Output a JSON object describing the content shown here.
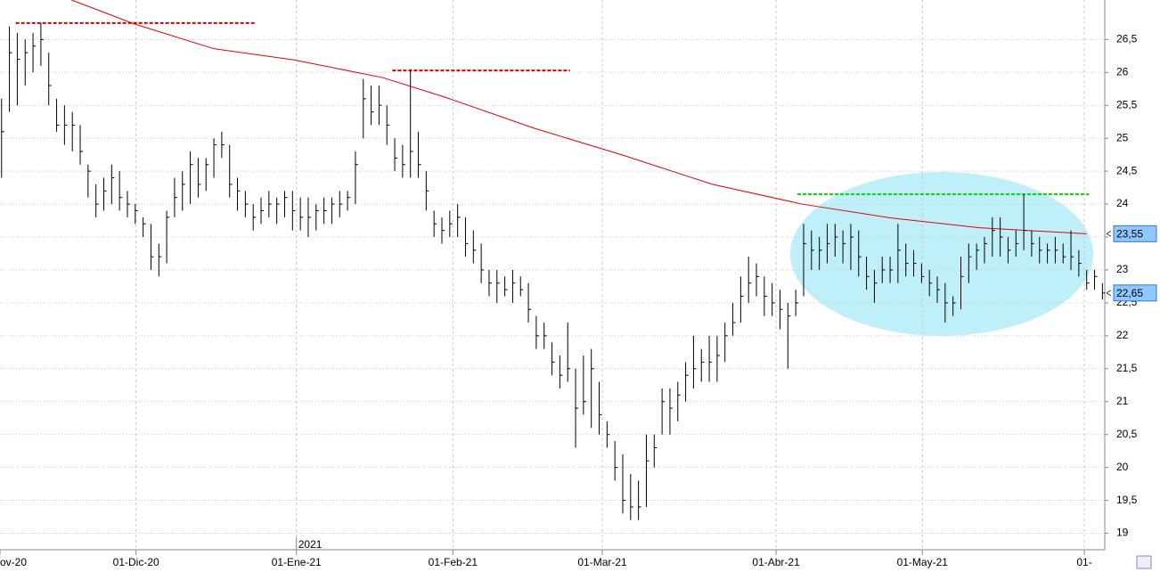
{
  "chart_data": {
    "type": "ohlc",
    "bar_color": "#000000",
    "x": [
      0,
      1,
      2,
      3,
      4,
      5,
      6,
      7,
      8,
      9,
      10,
      11,
      12,
      13,
      14,
      15,
      16,
      17,
      18,
      19,
      20,
      21,
      22,
      23,
      24,
      25,
      26,
      27,
      28,
      29,
      30,
      31,
      32,
      33,
      34,
      35,
      36,
      37,
      38,
      39,
      40,
      41,
      42,
      43,
      44,
      45,
      46,
      47,
      48,
      49,
      50,
      51,
      52,
      53,
      54,
      55,
      56,
      57,
      58,
      59,
      60,
      61,
      62,
      63,
      64,
      65,
      66,
      67,
      68,
      69,
      70,
      71,
      72,
      73,
      74,
      75,
      76,
      77,
      78,
      79,
      80,
      81,
      82,
      83,
      84,
      85,
      86,
      87,
      88,
      89,
      90,
      91,
      92,
      93,
      94,
      95,
      96,
      97,
      98,
      99,
      100,
      101,
      102,
      103,
      104,
      105,
      106,
      107,
      108,
      109,
      110,
      111,
      112,
      113,
      114,
      115,
      116,
      117,
      118,
      119,
      120,
      121,
      122,
      123,
      124,
      125,
      126,
      127,
      128,
      129,
      130,
      131,
      132,
      133,
      134,
      135,
      136,
      137,
      138,
      139,
      140
    ],
    "high": [
      25.6,
      26.7,
      26.6,
      26.5,
      26.6,
      26.75,
      26.3,
      25.6,
      25.5,
      25.4,
      25.2,
      24.6,
      24.3,
      24.4,
      24.6,
      24.5,
      24.2,
      24.0,
      23.8,
      23.7,
      23.4,
      23.9,
      24.4,
      24.5,
      24.8,
      24.7,
      24.7,
      25.0,
      25.1,
      24.9,
      24.4,
      24.2,
      24.0,
      24.1,
      24.2,
      24.1,
      24.2,
      24.2,
      24.1,
      24.1,
      24.0,
      24.1,
      24.1,
      24.2,
      24.2,
      24.8,
      25.9,
      25.8,
      25.8,
      25.5,
      25.0,
      24.9,
      26.05,
      25.1,
      24.5,
      23.9,
      23.8,
      23.9,
      24.0,
      23.8,
      23.6,
      23.4,
      23.0,
      23.0,
      22.9,
      23.0,
      22.9,
      22.8,
      22.3,
      22.2,
      21.9,
      21.7,
      22.2,
      21.5,
      21.7,
      21.8,
      21.3,
      20.7,
      20.4,
      20.2,
      19.9,
      19.8,
      20.5,
      20.5,
      21.2,
      21.2,
      21.3,
      21.6,
      22.0,
      21.8,
      22.0,
      22.0,
      22.2,
      22.5,
      22.9,
      23.2,
      23.1,
      22.9,
      22.8,
      22.7,
      22.5,
      22.7,
      23.7,
      23.6,
      23.5,
      23.7,
      23.7,
      23.6,
      23.7,
      23.6,
      23.2,
      23.0,
      23.2,
      23.2,
      23.7,
      23.4,
      23.3,
      23.1,
      23.0,
      22.9,
      22.8,
      22.6,
      23.2,
      23.4,
      23.4,
      23.5,
      23.8,
      23.8,
      23.5,
      23.6,
      24.15,
      23.6,
      23.5,
      23.4,
      23.5,
      23.4,
      23.6,
      23.3,
      23.0,
      23.0,
      22.8
    ],
    "low": [
      24.4,
      25.4,
      25.5,
      25.8,
      26.0,
      26.1,
      25.5,
      25.1,
      24.9,
      24.8,
      24.6,
      24.1,
      23.8,
      23.9,
      24.0,
      23.9,
      23.8,
      23.7,
      23.5,
      23.0,
      22.9,
      23.1,
      23.8,
      23.9,
      24.0,
      24.1,
      24.2,
      24.4,
      24.7,
      24.1,
      23.9,
      23.8,
      23.6,
      23.7,
      23.8,
      23.7,
      23.8,
      23.6,
      23.6,
      23.5,
      23.6,
      23.7,
      23.7,
      23.8,
      23.9,
      24.0,
      25.0,
      25.2,
      25.2,
      24.9,
      24.5,
      24.4,
      24.4,
      24.4,
      23.9,
      23.5,
      23.4,
      23.5,
      23.5,
      23.2,
      23.1,
      22.8,
      22.6,
      22.5,
      22.6,
      22.5,
      22.6,
      22.2,
      21.8,
      21.8,
      21.4,
      21.2,
      21.3,
      20.3,
      20.8,
      20.6,
      20.5,
      20.3,
      19.8,
      19.3,
      19.2,
      19.2,
      19.4,
      20.0,
      20.5,
      20.5,
      20.7,
      21.0,
      21.2,
      21.3,
      21.3,
      21.3,
      21.6,
      22.0,
      22.2,
      22.5,
      22.6,
      22.3,
      22.3,
      22.1,
      21.5,
      22.3,
      22.6,
      23.0,
      23.0,
      23.1,
      23.2,
      23.1,
      23.0,
      22.9,
      22.7,
      22.5,
      22.8,
      22.8,
      22.8,
      22.9,
      22.9,
      22.8,
      22.6,
      22.5,
      22.2,
      22.3,
      22.4,
      22.8,
      23.0,
      23.1,
      23.2,
      23.2,
      23.1,
      23.2,
      23.3,
      23.2,
      23.1,
      23.1,
      23.1,
      23.1,
      23.0,
      22.9,
      22.7,
      22.7,
      22.55
    ],
    "close": [
      25.1,
      26.3,
      26.2,
      26.3,
      26.4,
      26.5,
      25.8,
      25.2,
      25.2,
      25.2,
      24.8,
      24.5,
      24.0,
      24.2,
      24.4,
      24.1,
      24.0,
      23.9,
      23.7,
      23.2,
      23.2,
      23.8,
      24.1,
      24.3,
      24.6,
      24.3,
      24.6,
      24.9,
      24.9,
      24.3,
      24.2,
      24.0,
      23.8,
      23.9,
      24.0,
      24.0,
      24.1,
      23.9,
      23.8,
      23.8,
      23.9,
      23.9,
      24.0,
      24.0,
      24.1,
      24.6,
      25.6,
      25.4,
      25.5,
      25.2,
      24.7,
      24.6,
      24.8,
      24.6,
      24.2,
      23.7,
      23.6,
      23.7,
      23.8,
      23.4,
      23.3,
      23.0,
      22.8,
      22.8,
      22.7,
      22.8,
      22.7,
      22.4,
      22.0,
      22.0,
      21.6,
      21.4,
      21.5,
      20.9,
      21.0,
      21.5,
      20.8,
      20.5,
      20.0,
      19.5,
      19.4,
      19.4,
      20.1,
      20.3,
      21.0,
      20.9,
      21.1,
      21.4,
      21.5,
      21.6,
      21.6,
      21.7,
      22.0,
      22.2,
      22.6,
      22.8,
      22.9,
      22.6,
      22.5,
      22.4,
      22.3,
      22.5,
      23.4,
      23.3,
      23.3,
      23.4,
      23.5,
      23.4,
      23.5,
      23.2,
      22.9,
      22.8,
      23.0,
      23.0,
      23.3,
      23.1,
      23.1,
      22.9,
      22.8,
      22.7,
      22.5,
      22.5,
      22.9,
      23.2,
      23.3,
      23.4,
      23.6,
      23.5,
      23.3,
      23.4,
      23.6,
      23.4,
      23.3,
      23.3,
      23.3,
      23.2,
      23.2,
      23.1,
      22.8,
      22.9,
      22.65
    ],
    "moving_average": {
      "color": "#e00000",
      "x": [
        8.9,
        16.8,
        27,
        37.2,
        48.5,
        56.5,
        67.8,
        79.1,
        90.4,
        101.8,
        113.1,
        124.4,
        138
      ],
      "values": [
        27.1,
        26.74,
        26.36,
        26.19,
        25.92,
        25.62,
        25.15,
        24.74,
        24.3,
        24.0,
        23.79,
        23.64,
        23.55
      ]
    },
    "levels": [
      {
        "color": "#d00000",
        "value": 26.75,
        "x": [
          1.8,
          32.3
        ]
      },
      {
        "color": "#d00000",
        "value": 26.03,
        "x": [
          49.7,
          72.3
        ]
      },
      {
        "color": "#00dd00",
        "value": 24.15,
        "x": [
          101.2,
          138.3
        ]
      }
    ],
    "price_markers": [
      {
        "value": 23.55,
        "label": "23,55"
      },
      {
        "value": 22.65,
        "label": "22,65"
      }
    ],
    "year_marker": {
      "value": 37.5,
      "label": "2021"
    },
    "xlim": [
      -0.2,
      140.3
    ],
    "ylim": [
      18.75,
      27.1
    ],
    "xticks": [
      {
        "value": -0.2,
        "label": "ov-20"
      },
      {
        "value": 17.1,
        "label": "01-Dic-20"
      },
      {
        "value": 37.5,
        "label": "01-Ene-21"
      },
      {
        "value": 57.4,
        "label": "01-Feb-21"
      },
      {
        "value": 76.4,
        "label": "01-Mar-21"
      },
      {
        "value": 98.5,
        "label": "01-Abr-21"
      },
      {
        "value": 117.1,
        "label": "01-May-21"
      },
      {
        "value": 137.7,
        "label": "01-"
      }
    ],
    "yticks": [
      19,
      {
        "value": 19.5,
        "label": "19,5"
      },
      20,
      {
        "value": 20.5,
        "label": "20,5"
      },
      21,
      {
        "value": 21.5,
        "label": "21,5"
      },
      22,
      {
        "value": 22.5,
        "label": "22,5"
      },
      23,
      {
        "value": 23.5,
        "label": "23,5"
      },
      24,
      {
        "value": 24.5,
        "label": "24,5"
      },
      25,
      {
        "value": 25.5,
        "label": "25,5"
      },
      26,
      {
        "value": 26.5,
        "label": "26,5"
      }
    ],
    "grid": true
  }
}
